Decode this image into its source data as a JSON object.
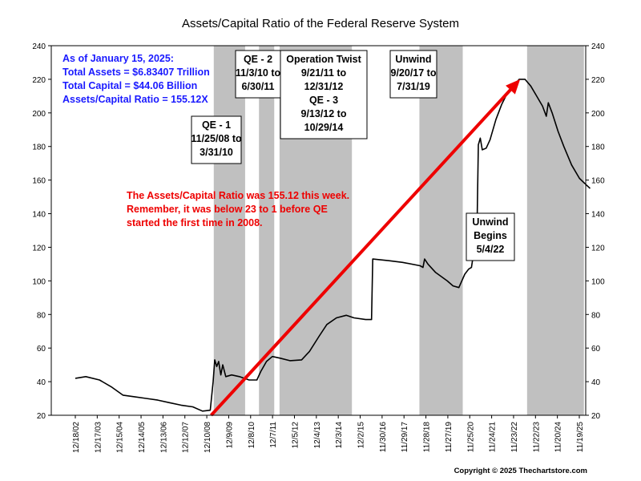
{
  "chart_data": {
    "type": "line",
    "title": "Assets/Capital Ratio of the Federal Reserve System",
    "xlabel": "",
    "ylabel": "",
    "ylim": [
      20,
      240
    ],
    "yticks": [
      20,
      40,
      60,
      80,
      100,
      120,
      140,
      160,
      180,
      200,
      220,
      240
    ],
    "grid": false,
    "x_axis_type": "date",
    "x_range": [
      "2002-12-18",
      "2025-11-19"
    ],
    "x_tick_labels": [
      "12/18/02",
      "12/17/03",
      "12/15/04",
      "12/14/05",
      "12/13/06",
      "12/12/07",
      "12/10/08",
      "12/9/09",
      "12/8/10",
      "12/7/11",
      "12/5/12",
      "12/4/13",
      "12/3/14",
      "12/2/15",
      "11/30/16",
      "11/29/17",
      "11/28/18",
      "11/27/19",
      "11/25/20",
      "11/24/21",
      "11/23/22",
      "11/22/23",
      "11/20/24",
      "11/19/25"
    ],
    "shaded_periods": [
      {
        "start": "2008-11-25",
        "end": "2010-03-31"
      },
      {
        "start": "2010-11-03",
        "end": "2011-06-30"
      },
      {
        "start": "2011-09-21",
        "end": "2014-10-29"
      },
      {
        "start": "2017-09-20",
        "end": "2019-07-31"
      },
      {
        "start": "2022-05-04",
        "end": "2024-10-10"
      }
    ],
    "shade_color": "#c0c0c0",
    "series": [
      {
        "color": "#000000",
        "points": [
          [
            "2002-12-18",
            42
          ],
          [
            "2003-06-01",
            43
          ],
          [
            "2004-01-01",
            41
          ],
          [
            "2004-07-01",
            37
          ],
          [
            "2005-01-01",
            32
          ],
          [
            "2005-07-01",
            31
          ],
          [
            "2006-01-01",
            30
          ],
          [
            "2006-07-01",
            29
          ],
          [
            "2007-01-01",
            27.5
          ],
          [
            "2007-07-01",
            26
          ],
          [
            "2008-01-01",
            25
          ],
          [
            "2008-06-01",
            22.5
          ],
          [
            "2008-10-01",
            23
          ],
          [
            "2008-11-15",
            40
          ],
          [
            "2008-12-10",
            53
          ],
          [
            "2009-01-10",
            49
          ],
          [
            "2009-02-10",
            52
          ],
          [
            "2009-03-15",
            44
          ],
          [
            "2009-04-15",
            50
          ],
          [
            "2009-06-01",
            43
          ],
          [
            "2009-09-01",
            44
          ],
          [
            "2010-01-01",
            43
          ],
          [
            "2010-06-01",
            41
          ],
          [
            "2010-10-01",
            41
          ],
          [
            "2010-12-01",
            46
          ],
          [
            "2011-03-01",
            52
          ],
          [
            "2011-06-01",
            55
          ],
          [
            "2011-10-01",
            54
          ],
          [
            "2012-03-01",
            52.5
          ],
          [
            "2012-09-01",
            53
          ],
          [
            "2013-01-01",
            58
          ],
          [
            "2013-06-01",
            67
          ],
          [
            "2013-10-01",
            74
          ],
          [
            "2014-03-01",
            78
          ],
          [
            "2014-08-01",
            79.5
          ],
          [
            "2014-12-01",
            78
          ],
          [
            "2015-06-01",
            77
          ],
          [
            "2015-09-01",
            77
          ],
          [
            "2015-09-20",
            113
          ],
          [
            "2016-06-01",
            112
          ],
          [
            "2017-01-01",
            111
          ],
          [
            "2017-10-01",
            109
          ],
          [
            "2017-11-15",
            108
          ],
          [
            "2017-12-10",
            113
          ],
          [
            "2018-02-01",
            110
          ],
          [
            "2018-06-01",
            105
          ],
          [
            "2018-12-01",
            100
          ],
          [
            "2019-03-01",
            97
          ],
          [
            "2019-06-01",
            96
          ],
          [
            "2019-09-01",
            104
          ],
          [
            "2019-11-01",
            107
          ],
          [
            "2019-12-15",
            108
          ],
          [
            "2020-03-10",
            130
          ],
          [
            "2020-04-01",
            181
          ],
          [
            "2020-05-01",
            185
          ],
          [
            "2020-06-01",
            178
          ],
          [
            "2020-08-01",
            179
          ],
          [
            "2020-10-01",
            184
          ],
          [
            "2021-01-01",
            196
          ],
          [
            "2021-04-01",
            205
          ],
          [
            "2021-07-01",
            212
          ],
          [
            "2021-10-01",
            216
          ],
          [
            "2022-01-01",
            220
          ],
          [
            "2022-04-01",
            220
          ],
          [
            "2022-07-01",
            216
          ],
          [
            "2022-10-01",
            210
          ],
          [
            "2023-01-01",
            204
          ],
          [
            "2023-03-01",
            198
          ],
          [
            "2023-04-01",
            206
          ],
          [
            "2023-06-01",
            200
          ],
          [
            "2023-09-01",
            189
          ],
          [
            "2023-12-01",
            180
          ],
          [
            "2024-04-01",
            169
          ],
          [
            "2024-08-01",
            161
          ],
          [
            "2024-11-20",
            157
          ],
          [
            "2025-01-15",
            155
          ]
        ]
      }
    ],
    "trend_arrow": {
      "color": "#ee0000",
      "from": [
        "2008-10-15",
        20
      ],
      "to": [
        "2022-01-15",
        220
      ]
    },
    "annotations": {
      "qe1": [
        "QE - 1",
        "11/25/08 to",
        "3/31/10"
      ],
      "qe2": [
        "QE - 2",
        "11/3/10 to",
        "6/30/11"
      ],
      "twist": [
        "Operation Twist",
        "9/21/11 to",
        "12/31/12",
        "QE - 3",
        "9/13/12 to",
        "10/29/14"
      ],
      "unwind": [
        "Unwind",
        "9/20/17 to",
        "7/31/19"
      ],
      "unwind_begins": [
        "Unwind",
        "Begins",
        "5/4/22"
      ]
    },
    "info_lines": [
      "As of January 15, 2025:",
      "Total Assets = $6.83407 Trillion",
      "Total Capital  = $44.06 Billion",
      "Assets/Capital Ratio = 155.12X"
    ],
    "red_note": [
      "The Assets/Capital Ratio was 155.12 this week.",
      "Remember, it was below 23 to 1 before QE",
      "started the first time in 2008."
    ],
    "copyright": "Copyright © 2025 Thechartstore.com"
  }
}
